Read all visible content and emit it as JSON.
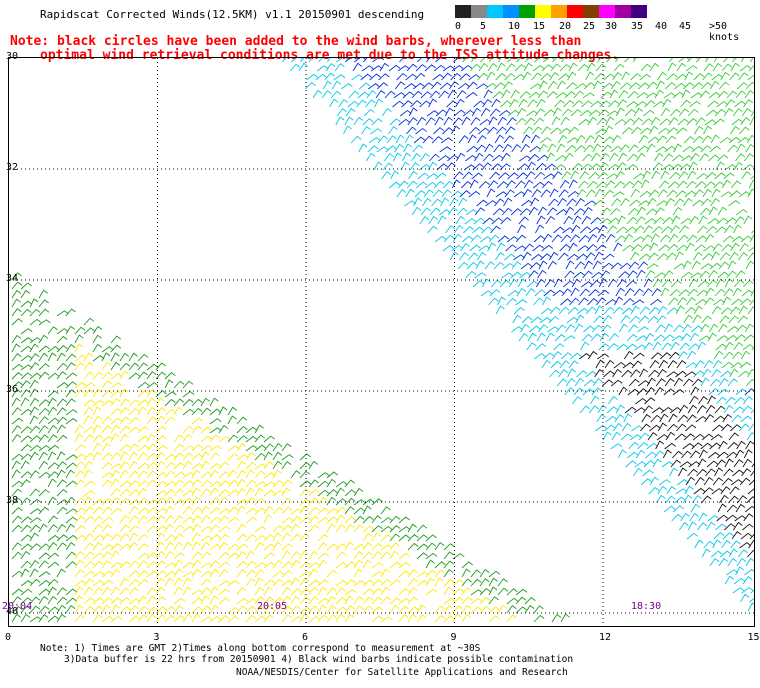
{
  "title": "Rapidscat Corrected Winds(12.5KM) v1.1 20150901 descending",
  "note_line1": "Note: black circles have been added to the wind barbs, wherever less than",
  "note_line2": "optimal wind retrieval conditions are met due to the ISS attitude changes.",
  "legend": {
    "labels": [
      "0",
      "5",
      "10",
      "15",
      "20",
      "25",
      "30",
      "35",
      "40",
      "45",
      ">50 knots"
    ],
    "colors": [
      "#222222",
      "#888888",
      "#00c8ff",
      "#0090ff",
      "#00a000",
      "#ffff00",
      "#ffa000",
      "#ff0000",
      "#804000",
      "#ff00ff",
      "#a000a0",
      "#400080"
    ]
  },
  "axes": {
    "x_labels": [
      "0",
      "3",
      "6",
      "9",
      "12",
      "15"
    ],
    "y_labels": [
      "30",
      "32",
      "34",
      "36",
      "38",
      "40"
    ]
  },
  "times": [
    "20:04",
    "20:05",
    "18:30"
  ],
  "footnote_line1": "Note: 1) Times are GMT 2)Times along bottom correspond to measurement at ~30S",
  "footnote_line2": "3)Data buffer is 22 hrs from 20150901 4) Black wind barbs indicate possible contamination",
  "footnote_line3": "NOAA/NESDIS/Center for Satellite Applications and Research"
}
